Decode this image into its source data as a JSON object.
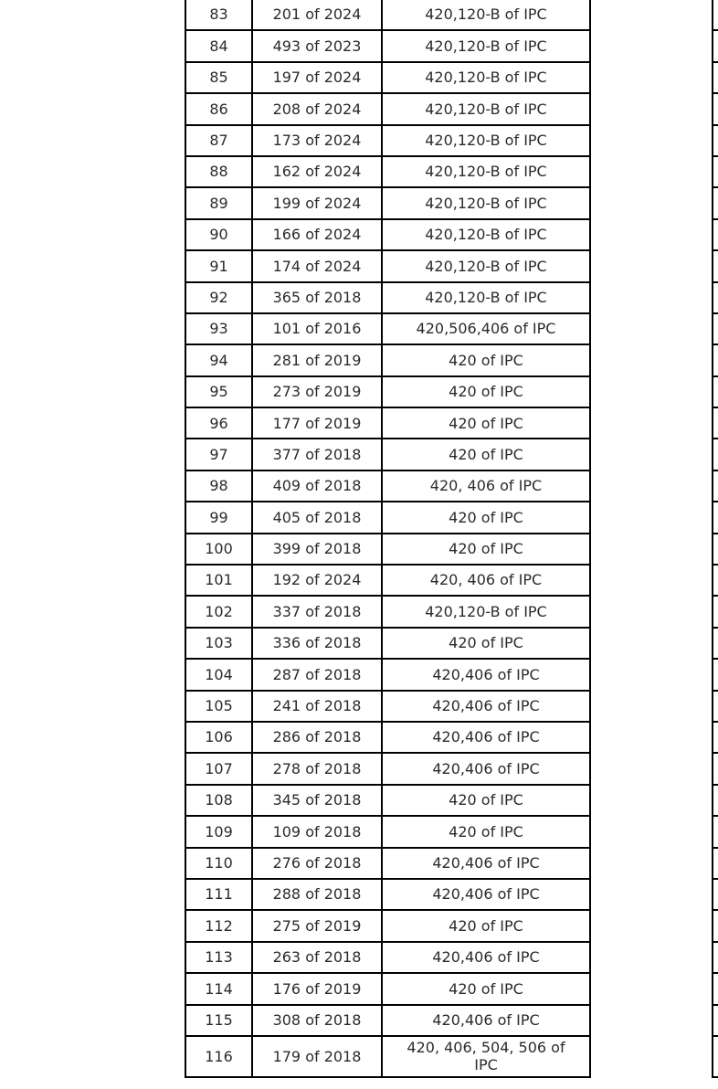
{
  "page": {
    "background_color": "#ffffff",
    "border_color": "#000000",
    "text_color": "#2b2b2b"
  },
  "table": {
    "rows": [
      [
        "83",
        "201 of 2024",
        "420,120-B of IPC"
      ],
      [
        "84",
        "493 of 2023",
        "420,120-B of IPC"
      ],
      [
        "85",
        "197 of 2024",
        "420,120-B of IPC"
      ],
      [
        "86",
        "208 of 2024",
        "420,120-B of IPC"
      ],
      [
        "87",
        "173 of 2024",
        "420,120-B of IPC"
      ],
      [
        "88",
        "162 of 2024",
        "420,120-B of IPC"
      ],
      [
        "89",
        "199 of 2024",
        "420,120-B of IPC"
      ],
      [
        "90",
        "166 of 2024",
        "420,120-B of IPC"
      ],
      [
        "91",
        "174 of 2024",
        "420,120-B of IPC"
      ],
      [
        "92",
        "365 of 2018",
        "420,120-B of IPC"
      ],
      [
        "93",
        "101 of 2016",
        "420,506,406 of IPC"
      ],
      [
        "94",
        "281 of 2019",
        "420 of IPC"
      ],
      [
        "95",
        "273 of 2019",
        "420 of IPC"
      ],
      [
        "96",
        "177 of 2019",
        "420 of IPC"
      ],
      [
        "97",
        "377 of 2018",
        "420 of IPC"
      ],
      [
        "98",
        "409 of 2018",
        "420, 406 of IPC"
      ],
      [
        "99",
        "405 of 2018",
        "420 of IPC"
      ],
      [
        "100",
        "399 of 2018",
        "420 of IPC"
      ],
      [
        "101",
        "192 of 2024",
        "420, 406 of IPC"
      ],
      [
        "102",
        "337 of 2018",
        "420,120-B of IPC"
      ],
      [
        "103",
        "336 of 2018",
        "420 of IPC"
      ],
      [
        "104",
        "287 of 2018",
        "420,406 of IPC"
      ],
      [
        "105",
        "241 of 2018",
        "420,406 of IPC"
      ],
      [
        "106",
        "286 of 2018",
        "420,406 of IPC"
      ],
      [
        "107",
        "278 of 2018",
        "420,406 of IPC"
      ],
      [
        "108",
        "345 of 2018",
        "420 of IPC"
      ],
      [
        "109",
        "109 of 2018",
        "420 of IPC"
      ],
      [
        "110",
        "276 of 2018",
        "420,406 of IPC"
      ],
      [
        "111",
        "288 of 2018",
        "420,406 of IPC"
      ],
      [
        "112",
        "275 of 2019",
        "420 of IPC"
      ],
      [
        "113",
        "263 of 2018",
        "420,406 of IPC"
      ],
      [
        "114",
        "176 of 2019",
        "420 of IPC"
      ],
      [
        "115",
        "308 of 2018",
        "420,406 of IPC"
      ],
      [
        "116",
        "179 of 2018",
        "420, 406, 504, 506 of IPC"
      ]
    ]
  }
}
